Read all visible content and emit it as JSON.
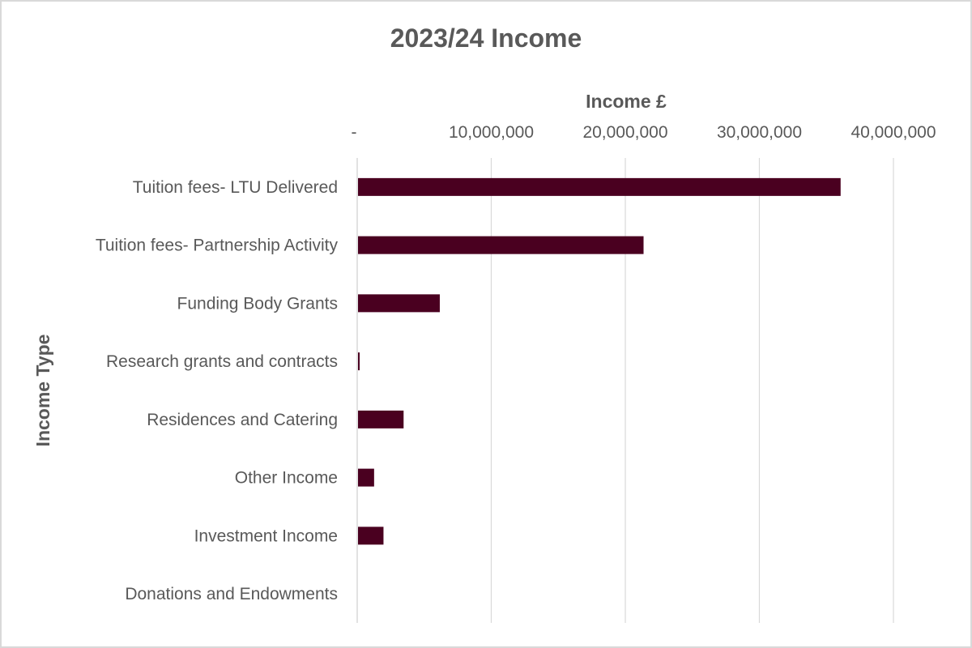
{
  "chart_data": {
    "type": "bar",
    "orientation": "horizontal",
    "title": "2023/24 Income",
    "xlabel": "Income £",
    "ylabel": "Income Type",
    "x_axis_position": "top",
    "xlim": [
      0,
      40000000
    ],
    "x_ticks": [
      0,
      10000000,
      20000000,
      30000000,
      40000000
    ],
    "x_tick_labels": [
      "-",
      "10,000,000",
      "20,000,000",
      "30,000,000",
      "40,000,000"
    ],
    "grid": true,
    "legend": "none",
    "categories": [
      "Tuition fees- LTU Delivered",
      "Tuition fees- Partnership Activity",
      "Funding Body Grants",
      "Research grants and contracts",
      "Residences and Catering",
      "Other Income",
      "Investment Income",
      "Donations and Endowments"
    ],
    "values": [
      36000000,
      21300000,
      6100000,
      100000,
      3400000,
      1200000,
      1900000,
      0
    ],
    "colors": {
      "bar": "#4a0020",
      "grid": "#d9d9d9",
      "text": "#595959"
    }
  }
}
